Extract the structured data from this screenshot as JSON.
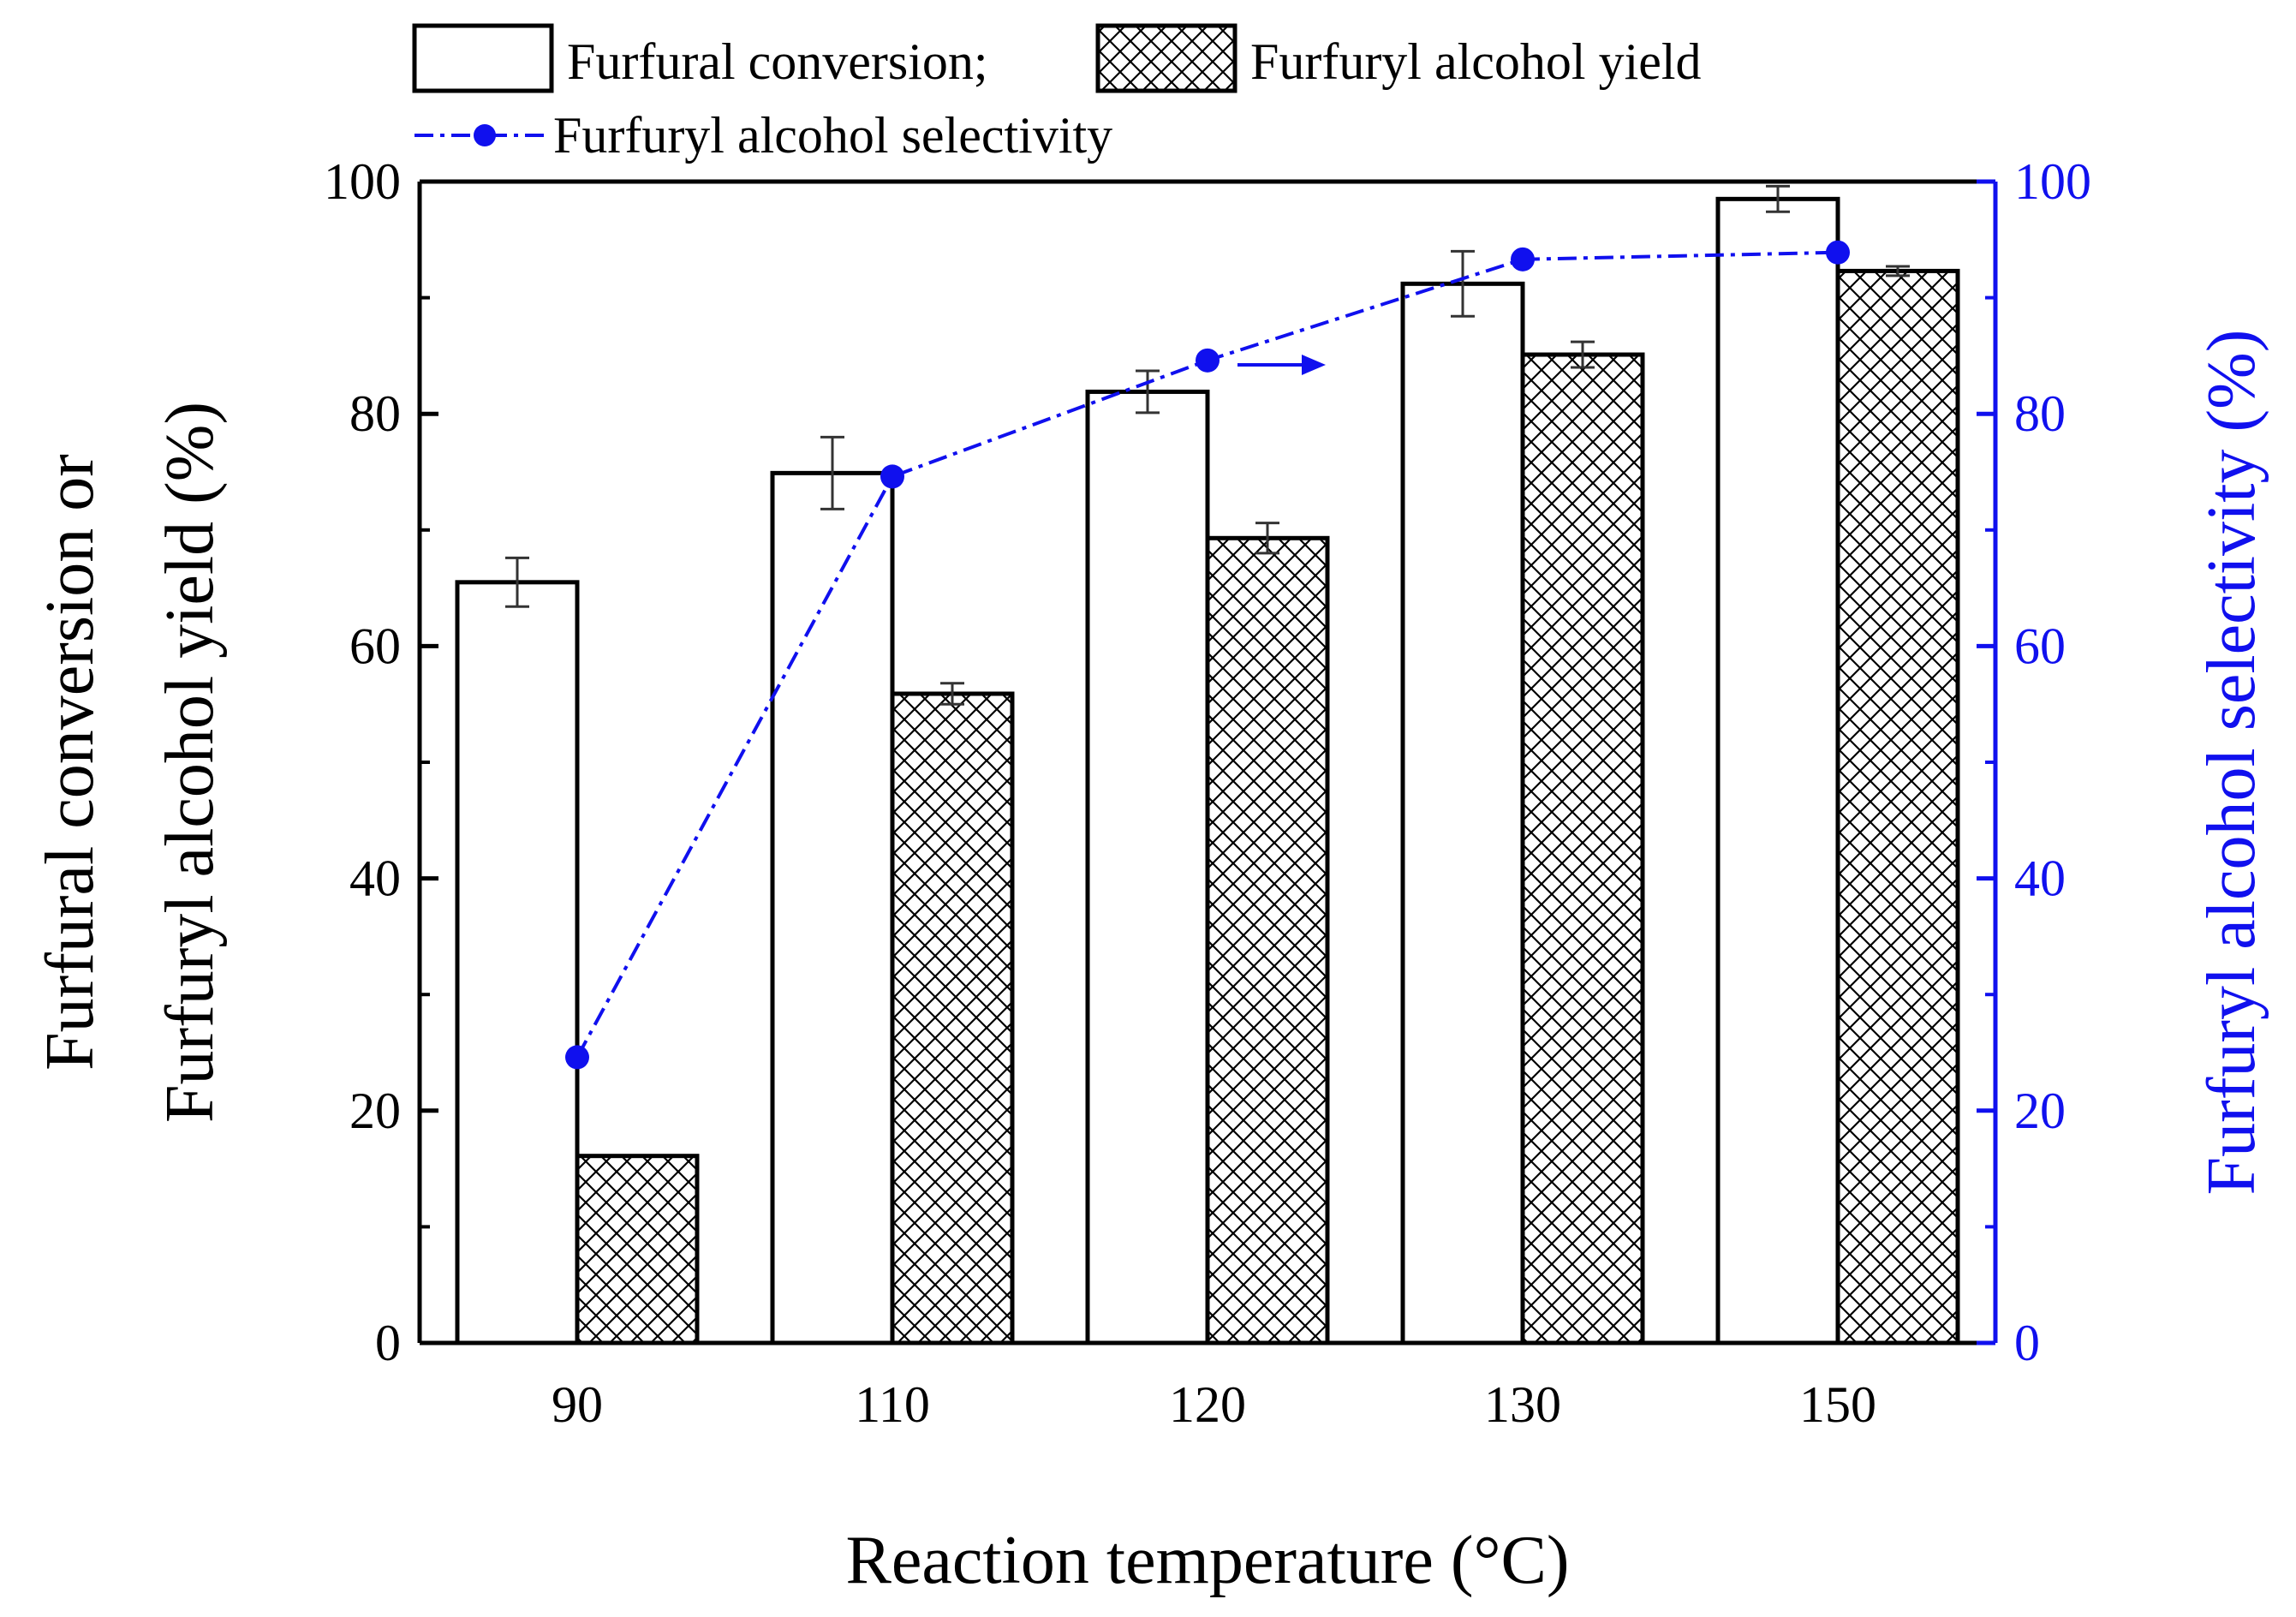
{
  "chart_data": {
    "type": "bar",
    "categories": [
      "90",
      "110",
      "120",
      "130",
      "150"
    ],
    "xlabel": "Reaction temperature (°C)",
    "ylabel_line1": "Furfural conversion or",
    "ylabel_line2": "Furfuryl alcohol yield (%)",
    "y2label": "Furfuryl alcohol selectivity (%)",
    "ylim": [
      0,
      100
    ],
    "y2lim": [
      0,
      100
    ],
    "yticks": [
      "0",
      "20",
      "40",
      "60",
      "80",
      "100"
    ],
    "y2ticks": [
      "0",
      "20",
      "40",
      "60",
      "80",
      "100"
    ],
    "series": [
      {
        "name": "Furfural conversion;",
        "type": "bar",
        "style": "open",
        "values": [
          65.5,
          74.9,
          81.9,
          91.2,
          98.5
        ],
        "errors": [
          2.1,
          3.1,
          1.8,
          2.8,
          1.1
        ]
      },
      {
        "name": "Furfuryl alcohol yield",
        "type": "bar",
        "style": "crosshatch",
        "values": [
          16.1,
          55.9,
          69.3,
          85.1,
          92.3
        ],
        "errors": [
          0,
          0.9,
          1.3,
          1.1,
          0.4
        ]
      },
      {
        "name": "Furfuryl alcohol selectivity",
        "type": "line",
        "axis": "right",
        "values": [
          24.6,
          74.6,
          84.6,
          93.3,
          93.9
        ]
      }
    ],
    "annotation": "arrow pointing to right axis",
    "legend_position": "top",
    "colors": {
      "line": "#1010ee",
      "right_axis": "#1010ee",
      "bars": "#000000"
    }
  }
}
